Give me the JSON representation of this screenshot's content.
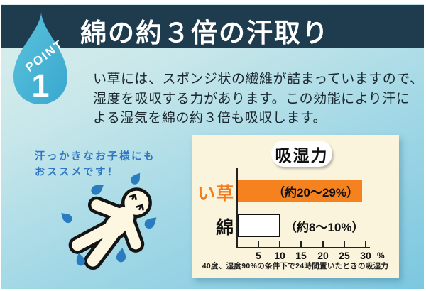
{
  "header": {
    "point_label": "POINT",
    "point_number": "1",
    "title": "綿の約３倍の汗取り"
  },
  "body": {
    "lines": [
      "い草には、スポンジ状の繊維が詰まっていますので、",
      "湿度を吸収する力があります。この効能により汗に",
      "よる湿気を綿の約３倍も吸収します。"
    ]
  },
  "note": {
    "lines": [
      "汗っかきなお子様にも",
      "おススメです！"
    ]
  },
  "chart_data": {
    "type": "bar",
    "orientation": "horizontal",
    "title": "吸湿力",
    "categories": [
      "い草",
      "綿"
    ],
    "values": [
      29,
      10
    ],
    "value_ranges": [
      [
        20,
        29
      ],
      [
        8,
        10
      ]
    ],
    "value_annotations": [
      "（約20～29%）",
      "（約8～10%）"
    ],
    "xlim": [
      0,
      30
    ],
    "ticks": [
      5,
      10,
      15,
      20,
      25,
      30
    ],
    "tick_labels": [
      "5",
      "10",
      "15",
      "20",
      "25",
      "30"
    ],
    "unit": "%",
    "bar_colors": [
      "#f5821f",
      "#ffffff"
    ],
    "grid": false,
    "footnote": "40度、湿度90%の条件下で24時間置いたときの吸湿力"
  },
  "colors": {
    "header_navy": "#1e3c4e",
    "drop_blue": "#47b4d6",
    "accent_orange": "#f5821f",
    "note_blue": "#2f77c5",
    "panel_cream": "#fbf4dc",
    "sweat_blue": "#2a7cc0"
  }
}
